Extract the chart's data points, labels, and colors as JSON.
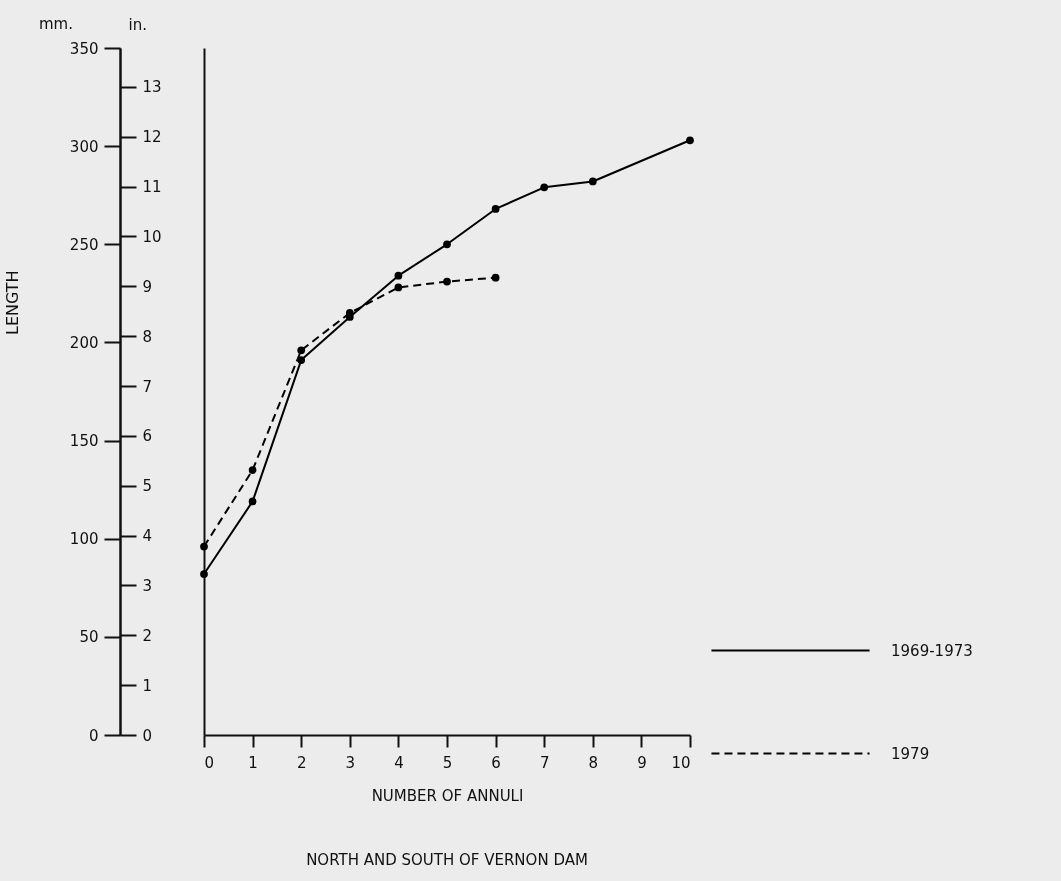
{
  "chart_data": {
    "type": "line",
    "xlabel": "NUMBER OF ANNULI",
    "ylabel": "LENGTH",
    "y2label": "in.",
    "annotations": [
      "mm.",
      "NORTH AND SOUTH OF VERNON DAM"
    ],
    "series": [
      {
        "name": "1969-1973",
        "color": "#000000",
        "line_style": "solid",
        "x": [
          0,
          1,
          2,
          3,
          4,
          5,
          6,
          7,
          8,
          10
        ],
        "values": [
          82,
          119,
          191,
          213,
          234,
          250,
          268,
          279,
          282,
          303
        ]
      },
      {
        "name": "1979",
        "color": "#000000",
        "line_style": "dashed",
        "x": [
          0,
          1,
          2,
          3,
          4,
          5,
          6
        ],
        "values": [
          96,
          135,
          196,
          215,
          228,
          231,
          233
        ]
      }
    ],
    "xlim": [
      0,
      10
    ],
    "xticks": [
      0,
      1,
      2,
      3,
      4,
      5,
      6,
      7,
      8,
      9,
      10
    ],
    "ylim": [
      0,
      350
    ],
    "yticks": [
      0,
      50,
      100,
      150,
      200,
      250,
      300,
      350
    ],
    "y2lim": [
      0,
      13.78
    ],
    "y2ticks": [
      0,
      1,
      2,
      3,
      4,
      5,
      6,
      7,
      8,
      9,
      10,
      11,
      12,
      13
    ],
    "marker": "circle",
    "grid": false,
    "legend": "bottom right"
  }
}
